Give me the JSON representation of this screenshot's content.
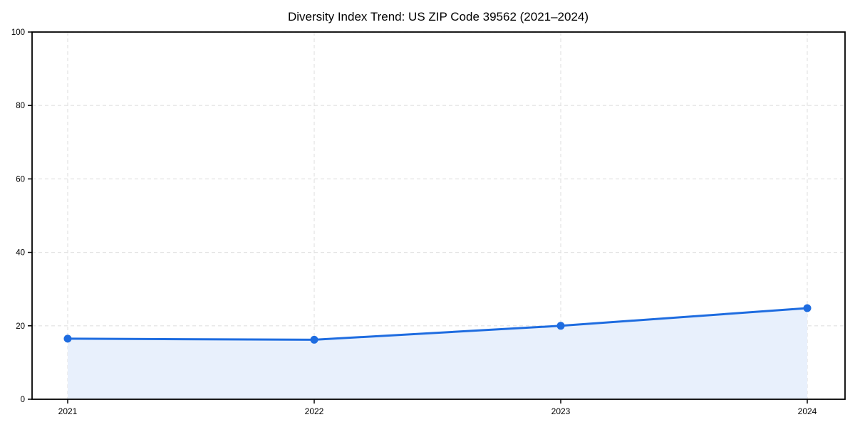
{
  "chart_data": {
    "type": "area",
    "title": "Diversity Index Trend: US ZIP Code 39562 (2021–2024)",
    "x": [
      "2021",
      "2022",
      "2023",
      "2024"
    ],
    "series": [
      {
        "name": "Diversity Index",
        "values": [
          16.5,
          16.2,
          20.0,
          24.8
        ]
      }
    ],
    "xlabel": "",
    "ylabel": "",
    "ylim": [
      0,
      100
    ],
    "yticks": [
      0,
      20,
      40,
      60,
      80,
      100
    ],
    "grid": "on",
    "grid_style": "dashed",
    "legend": "none",
    "colors": {
      "line": "#1e6ce0",
      "marker": "#1e6ce0",
      "area_fill": "#e8f0fc",
      "grid": "#e2e2e2",
      "spine": "#000000",
      "tick": "#000000",
      "text": "#000000",
      "background": "#ffffff"
    }
  }
}
